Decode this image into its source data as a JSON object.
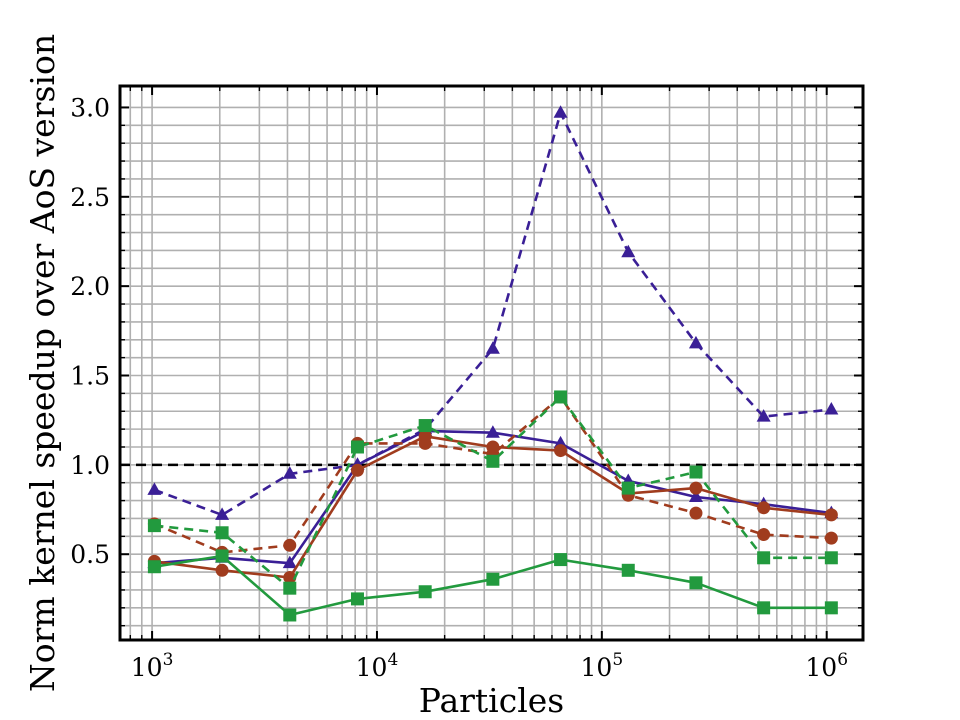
{
  "chart_data": {
    "type": "line",
    "xlabel": "Particles",
    "ylabel": "Norm kernel speedup over AoS version",
    "xscale": "log",
    "xlim": [
      720,
      1450000
    ],
    "ylim": [
      0.02,
      3.12
    ],
    "x_ticks": [
      1000,
      10000,
      100000,
      1000000
    ],
    "x_tick_labels": [
      {
        "base": "10",
        "exp": "3"
      },
      {
        "base": "10",
        "exp": "4"
      },
      {
        "base": "10",
        "exp": "5"
      },
      {
        "base": "10",
        "exp": "6"
      }
    ],
    "y_ticks": [
      0.5,
      1.0,
      1.5,
      2.0,
      2.5,
      3.0
    ],
    "y_tick_labels": [
      "0.5",
      "1.0",
      "1.5",
      "2.0",
      "2.5",
      "3.0"
    ],
    "grid": true,
    "reference_line": {
      "y": 1.0,
      "style": "dashed",
      "color": "#000000"
    },
    "x": [
      1024,
      2048,
      4096,
      8192,
      16384,
      32768,
      65536,
      131072,
      262144,
      524288,
      1048576
    ],
    "series": [
      {
        "color": "#3a1f96",
        "marker": "triangle",
        "dash": true,
        "values": [
          0.86,
          0.72,
          0.95,
          1.0,
          1.2,
          1.65,
          2.97,
          2.19,
          1.68,
          1.27,
          1.31
        ]
      },
      {
        "color": "#3a1f96",
        "marker": "triangle",
        "dash": false,
        "values": [
          0.45,
          0.48,
          0.45,
          1.0,
          1.19,
          1.18,
          1.12,
          0.91,
          0.82,
          0.78,
          0.73
        ]
      },
      {
        "color": "#a03c1e",
        "marker": "circle",
        "dash": true,
        "values": [
          0.67,
          0.51,
          0.55,
          1.12,
          1.12,
          1.06,
          1.38,
          0.83,
          0.73,
          0.61,
          0.59
        ]
      },
      {
        "color": "#a03c1e",
        "marker": "circle",
        "dash": false,
        "values": [
          0.46,
          0.41,
          0.37,
          0.97,
          1.16,
          1.1,
          1.08,
          0.84,
          0.87,
          0.76,
          0.72
        ]
      },
      {
        "color": "#229a3e",
        "marker": "square",
        "dash": true,
        "values": [
          0.66,
          0.62,
          0.31,
          1.1,
          1.22,
          1.02,
          1.38,
          0.87,
          0.96,
          0.48,
          0.48
        ]
      },
      {
        "color": "#229a3e",
        "marker": "square",
        "dash": false,
        "values": [
          0.43,
          0.49,
          0.16,
          0.25,
          0.29,
          0.36,
          0.47,
          0.41,
          0.34,
          0.2,
          0.2
        ]
      }
    ]
  }
}
